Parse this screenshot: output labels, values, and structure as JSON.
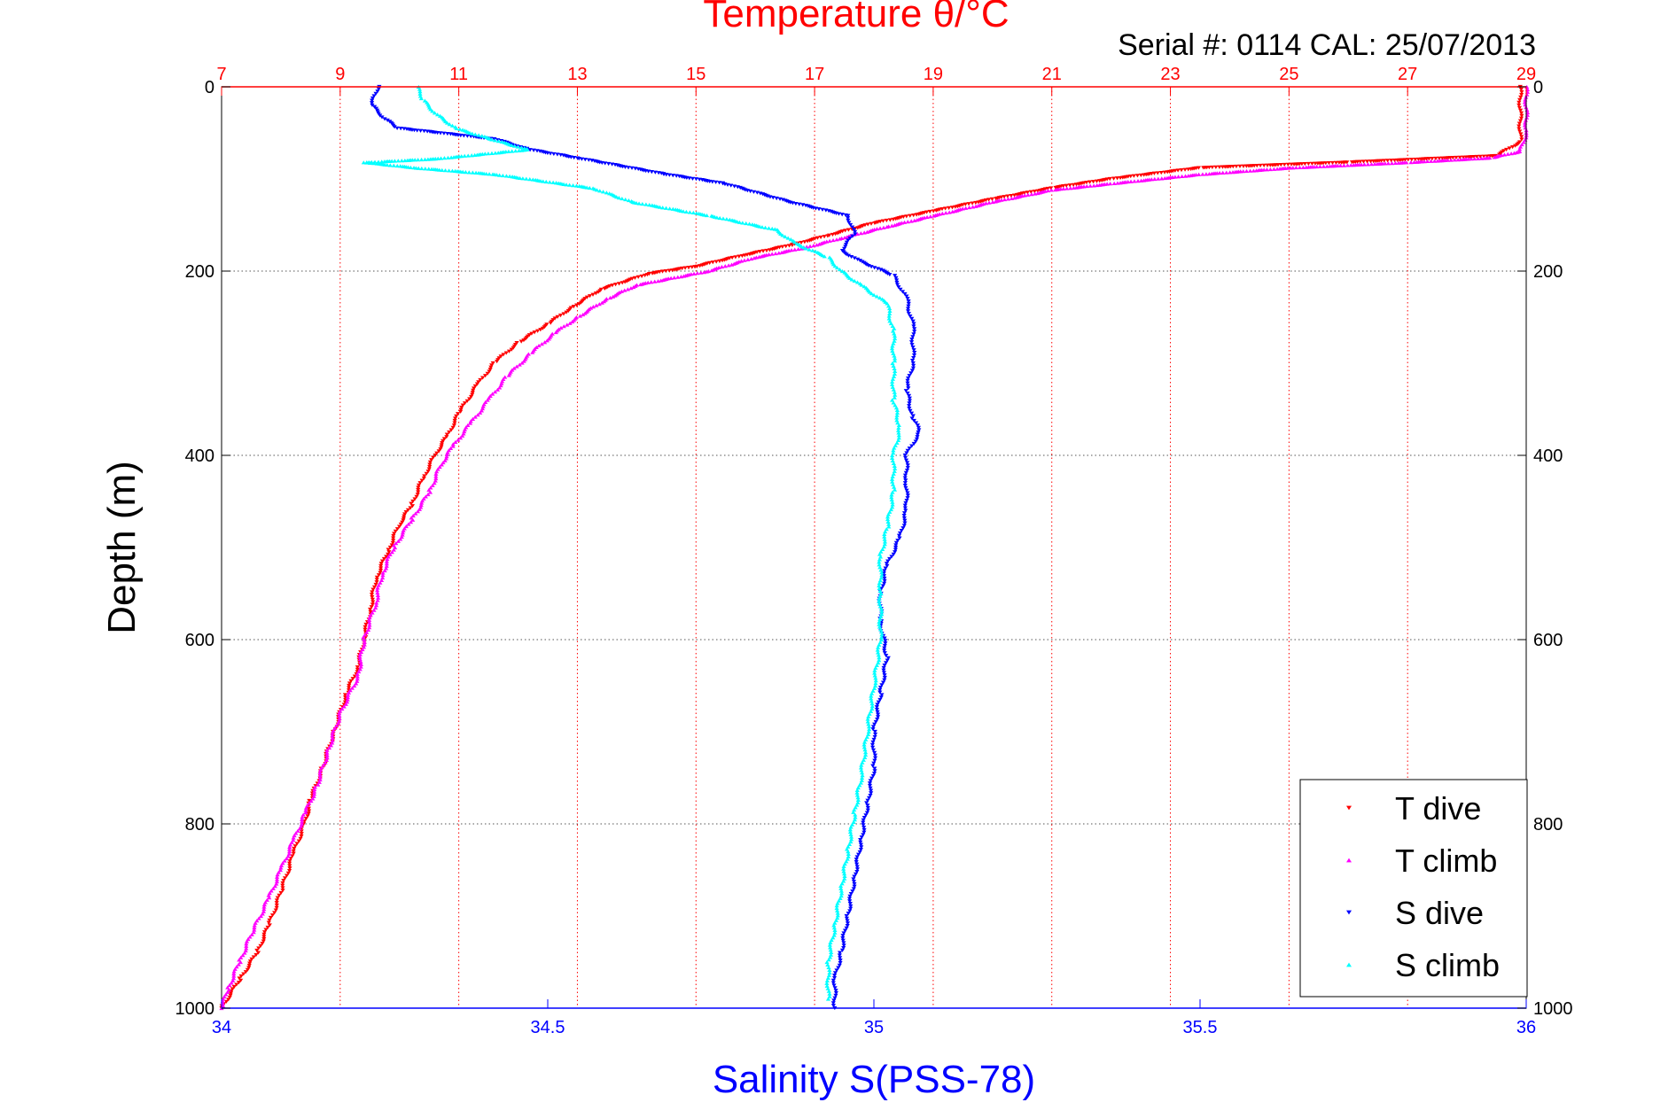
{
  "chart_data": {
    "type": "scatter",
    "title": "Temperature θ/°C",
    "subtitle": "Serial #: 0114  CAL: 25/07/2013",
    "ylabel": "Depth (m)",
    "xlabel": "Salinity S(PSS-78)",
    "y_reversed": true,
    "ylim": [
      0,
      1000
    ],
    "y_ticks": [
      "0",
      "200",
      "400",
      "600",
      "800",
      "1000"
    ],
    "x_bottom": {
      "lim": [
        34,
        36
      ],
      "ticks": [
        "34",
        "34.5",
        "35",
        "35.5",
        "36"
      ],
      "color": "#0000ff"
    },
    "x_top": {
      "lim": [
        7,
        29
      ],
      "ticks": [
        "7",
        "9",
        "11",
        "13",
        "15",
        "17",
        "19",
        "21",
        "23",
        "25",
        "27",
        "29"
      ],
      "color": "#ff0000"
    },
    "grid": true,
    "legend_position": "bottom-right",
    "series": [
      {
        "name": "T dive",
        "axis": "top",
        "color": "#ff0000",
        "marker": "triangle-down",
        "points": [
          [
            28.9,
            0
          ],
          [
            28.9,
            60
          ],
          [
            28.5,
            75
          ],
          [
            26.0,
            82
          ],
          [
            23.5,
            88
          ],
          [
            22.0,
            100
          ],
          [
            21.0,
            110
          ],
          [
            20.0,
            122
          ],
          [
            19.0,
            135
          ],
          [
            18.0,
            148
          ],
          [
            17.2,
            162
          ],
          [
            16.6,
            172
          ],
          [
            15.8,
            183
          ],
          [
            15.0,
            195
          ],
          [
            14.2,
            203
          ],
          [
            13.4,
            220
          ],
          [
            12.9,
            240
          ],
          [
            12.5,
            258
          ],
          [
            12.0,
            278
          ],
          [
            11.6,
            300
          ],
          [
            11.3,
            325
          ],
          [
            11.0,
            355
          ],
          [
            10.8,
            380
          ],
          [
            10.6,
            400
          ],
          [
            10.4,
            425
          ],
          [
            10.2,
            455
          ],
          [
            10.0,
            475
          ],
          [
            9.8,
            505
          ],
          [
            9.6,
            535
          ],
          [
            9.5,
            570
          ],
          [
            9.4,
            600
          ],
          [
            9.3,
            630
          ],
          [
            9.1,
            660
          ],
          [
            8.9,
            700
          ],
          [
            8.7,
            740
          ],
          [
            8.5,
            775
          ],
          [
            8.4,
            800
          ],
          [
            8.2,
            835
          ],
          [
            8.0,
            875
          ],
          [
            7.8,
            910
          ],
          [
            7.6,
            940
          ],
          [
            7.3,
            970
          ],
          [
            7.0,
            1000
          ]
        ]
      },
      {
        "name": "T climb",
        "axis": "top",
        "color": "#ff00ff",
        "marker": "triangle-up",
        "points": [
          [
            29.0,
            0
          ],
          [
            29.0,
            50
          ],
          [
            28.9,
            70
          ],
          [
            28.4,
            77
          ],
          [
            27.0,
            82
          ],
          [
            25.0,
            88
          ],
          [
            23.5,
            95
          ],
          [
            22.0,
            105
          ],
          [
            21.0,
            112
          ],
          [
            20.0,
            125
          ],
          [
            19.0,
            140
          ],
          [
            18.2,
            152
          ],
          [
            17.4,
            165
          ],
          [
            16.8,
            175
          ],
          [
            16.0,
            185
          ],
          [
            15.2,
            200
          ],
          [
            14.0,
            215
          ],
          [
            13.5,
            230
          ],
          [
            13.0,
            250
          ],
          [
            12.6,
            268
          ],
          [
            12.2,
            290
          ],
          [
            11.8,
            315
          ],
          [
            11.5,
            340
          ],
          [
            11.2,
            365
          ],
          [
            10.9,
            390
          ],
          [
            10.7,
            410
          ],
          [
            10.5,
            440
          ],
          [
            10.2,
            470
          ],
          [
            9.9,
            500
          ],
          [
            9.7,
            530
          ],
          [
            9.6,
            560
          ],
          [
            9.4,
            600
          ],
          [
            9.3,
            640
          ],
          [
            9.0,
            680
          ],
          [
            8.8,
            720
          ],
          [
            8.6,
            760
          ],
          [
            8.4,
            790
          ],
          [
            8.2,
            820
          ],
          [
            8.0,
            850
          ],
          [
            7.8,
            880
          ],
          [
            7.5,
            920
          ],
          [
            7.3,
            950
          ],
          [
            7.1,
            980
          ],
          [
            7.0,
            1000
          ]
        ]
      },
      {
        "name": "S dive",
        "axis": "bottom",
        "color": "#0000ff",
        "marker": "triangle-down",
        "points": [
          [
            34.24,
            0
          ],
          [
            34.23,
            20
          ],
          [
            34.25,
            35
          ],
          [
            34.27,
            45
          ],
          [
            34.42,
            57
          ],
          [
            34.47,
            68
          ],
          [
            34.55,
            78
          ],
          [
            34.68,
            95
          ],
          [
            34.77,
            105
          ],
          [
            34.87,
            125
          ],
          [
            34.96,
            140
          ],
          [
            34.97,
            160
          ],
          [
            34.95,
            178
          ],
          [
            34.98,
            190
          ],
          [
            35.03,
            205
          ],
          [
            35.05,
            230
          ],
          [
            35.06,
            260
          ],
          [
            35.06,
            300
          ],
          [
            35.05,
            330
          ],
          [
            35.06,
            360
          ],
          [
            35.07,
            375
          ],
          [
            35.05,
            400
          ],
          [
            35.05,
            430
          ],
          [
            35.05,
            460
          ],
          [
            35.04,
            490
          ],
          [
            35.02,
            520
          ],
          [
            35.01,
            550
          ],
          [
            35.01,
            580
          ],
          [
            35.02,
            620
          ],
          [
            35.01,
            660
          ],
          [
            35.0,
            700
          ],
          [
            35.0,
            740
          ],
          [
            34.99,
            780
          ],
          [
            34.98,
            820
          ],
          [
            34.97,
            860
          ],
          [
            34.96,
            900
          ],
          [
            34.95,
            940
          ],
          [
            34.94,
            970
          ],
          [
            34.94,
            1000
          ]
        ]
      },
      {
        "name": "S climb",
        "axis": "bottom",
        "color": "#00ffff",
        "marker": "triangle-up",
        "points": [
          [
            34.3,
            0
          ],
          [
            34.31,
            15
          ],
          [
            34.33,
            30
          ],
          [
            34.36,
            45
          ],
          [
            34.42,
            58
          ],
          [
            34.47,
            68
          ],
          [
            34.33,
            78
          ],
          [
            34.22,
            82
          ],
          [
            34.3,
            88
          ],
          [
            34.42,
            95
          ],
          [
            34.57,
            110
          ],
          [
            34.63,
            125
          ],
          [
            34.75,
            140
          ],
          [
            34.85,
            155
          ],
          [
            34.88,
            170
          ],
          [
            34.93,
            185
          ],
          [
            34.95,
            200
          ],
          [
            34.98,
            215
          ],
          [
            35.02,
            235
          ],
          [
            35.03,
            265
          ],
          [
            35.03,
            300
          ],
          [
            35.03,
            340
          ],
          [
            35.04,
            370
          ],
          [
            35.03,
            400
          ],
          [
            35.03,
            440
          ],
          [
            35.02,
            480
          ],
          [
            35.01,
            510
          ],
          [
            35.01,
            550
          ],
          [
            35.01,
            600
          ],
          [
            35.0,
            650
          ],
          [
            34.99,
            700
          ],
          [
            34.98,
            750
          ],
          [
            34.97,
            790
          ],
          [
            34.96,
            830
          ],
          [
            34.95,
            870
          ],
          [
            34.94,
            910
          ],
          [
            34.93,
            950
          ],
          [
            34.93,
            990
          ]
        ]
      }
    ]
  }
}
